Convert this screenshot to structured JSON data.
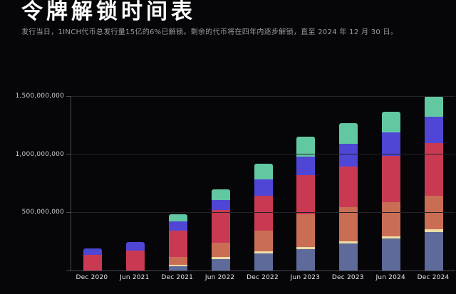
{
  "page": {
    "title": "令牌解锁时间表",
    "subtitle": "发行当日，1INCH代币总发行量15亿的6%已解锁。剩余的代币将在四年内逐步解锁，直至 2024 年 12 月 30 日。"
  },
  "chart_data": {
    "type": "bar",
    "stacked": true,
    "title": "令牌解锁时间表",
    "xlabel": "",
    "ylabel": "",
    "legend": "none",
    "grid": "horizontal",
    "ylim": [
      0,
      1500000000
    ],
    "categories": [
      "Dec 2020",
      "Jun 2021",
      "Dec 2021",
      "Jun 2022",
      "Dec 2022",
      "Jun 2023",
      "Dec 2023",
      "Jun 2024",
      "Dec 2024"
    ],
    "y_ticks": [
      {
        "value": 0,
        "label": ""
      },
      {
        "value": 500000000,
        "label": "500,000,000"
      },
      {
        "value": 1000000000,
        "label": "1,000,000,000"
      },
      {
        "value": 1500000000,
        "label": "1,500,000,000"
      }
    ],
    "series": [
      {
        "name": "slate-blue-segment",
        "color": "#5d6a9a",
        "values": [
          0,
          0,
          35000000,
          100000000,
          150000000,
          185000000,
          235000000,
          275000000,
          330000000
        ]
      },
      {
        "name": "cream-segment",
        "color": "#eedca4",
        "values": [
          0,
          0,
          12000000,
          15000000,
          16000000,
          18000000,
          18000000,
          20000000,
          25000000
        ]
      },
      {
        "name": "terracotta-segment",
        "color": "#c96e55",
        "values": [
          0,
          0,
          70000000,
          125000000,
          180000000,
          280000000,
          290000000,
          290000000,
          290000000
        ]
      },
      {
        "name": "crimson-segment",
        "color": "#c93a52",
        "values": [
          135000000,
          170000000,
          225000000,
          283000000,
          300000000,
          338000000,
          350000000,
          400000000,
          450000000
        ]
      },
      {
        "name": "indigo-segment",
        "color": "#4f46d6",
        "values": [
          52000000,
          78000000,
          82000000,
          86000000,
          135000000,
          158000000,
          199000000,
          200000000,
          225000000
        ]
      },
      {
        "name": "mint-segment",
        "color": "#62c8a2",
        "values": [
          0,
          0,
          62000000,
          88000000,
          138000000,
          175000000,
          175000000,
          180000000,
          180000000
        ]
      }
    ]
  }
}
